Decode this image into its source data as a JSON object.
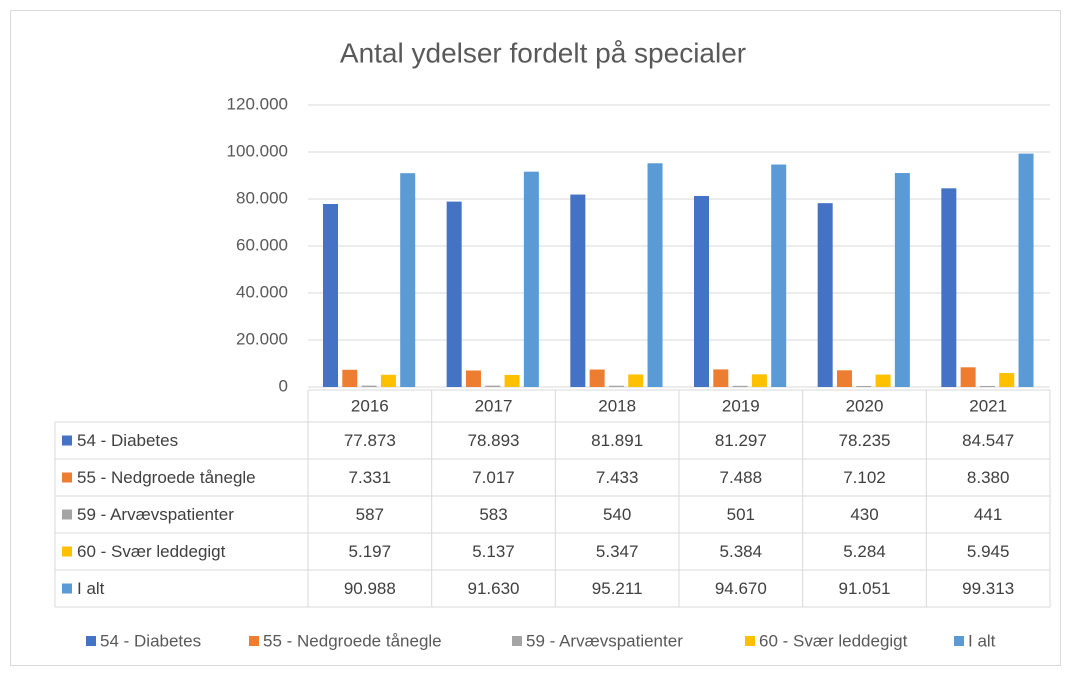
{
  "chart_data": {
    "type": "bar",
    "title": "Antal ydelser fordelt på specialer",
    "categories": [
      "2016",
      "2017",
      "2018",
      "2019",
      "2020",
      "2021"
    ],
    "series": [
      {
        "name": "54 - Diabetes",
        "color": "#4472c4",
        "values": [
          77873,
          78893,
          81891,
          81297,
          78235,
          84547
        ],
        "value_labels": [
          "77.873",
          "78.893",
          "81.891",
          "81.297",
          "78.235",
          "84.547"
        ]
      },
      {
        "name": "55 - Nedgroede tånegle",
        "color": "#ed7d31",
        "values": [
          7331,
          7017,
          7433,
          7488,
          7102,
          8380
        ],
        "value_labels": [
          "7.331",
          "7.017",
          "7.433",
          "7.488",
          "7.102",
          "8.380"
        ]
      },
      {
        "name": "59 - Arvævspatienter",
        "color": "#a5a5a5",
        "values": [
          587,
          583,
          540,
          501,
          430,
          441
        ]
      },
      {
        "name": "60 - Svær leddegigt",
        "color": "#ffc000",
        "values": [
          5197,
          5137,
          5347,
          5384,
          5284,
          5945
        ],
        "value_labels": [
          "5.197",
          "5.137",
          "5.347",
          "5.384",
          "5.284",
          "5.945"
        ]
      },
      {
        "name": "I alt",
        "color": "#5b9bd5",
        "values": [
          90988,
          91630,
          95211,
          94670,
          91051,
          99313
        ],
        "value_labels": [
          "90.988",
          "91.630",
          "95.211",
          "94.670",
          "91.051",
          "99.313"
        ]
      }
    ],
    "ylim": [
      0,
      120000
    ],
    "yticks": [
      0,
      {
        "value": 20000,
        "label": "20.000"
      },
      {
        "value": 40000,
        "label": "40.000"
      },
      {
        "value": 60000,
        "label": "60.000"
      },
      {
        "value": 80000,
        "label": "80.000"
      },
      {
        "value": 100000,
        "label": "100.000"
      },
      {
        "value": 120000,
        "label": "120.000"
      }
    ],
    "grid": true,
    "legend": "bottom"
  }
}
